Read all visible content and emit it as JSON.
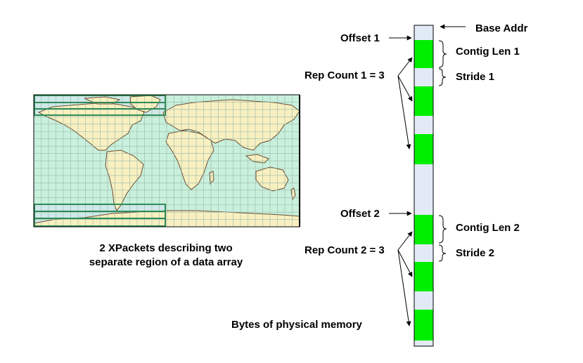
{
  "map": {
    "caption_line1": "2 XPackets describing two",
    "caption_line2": "separate region of a data array",
    "ocean_color": "#c8f0dc",
    "land_color": "#f8f0c0",
    "highlight_color": "#cfe8e8",
    "grid_color": "#9ab8a8",
    "region_color": "#2e8b57"
  },
  "memory": {
    "memory_label": "Bytes of physical memory",
    "base_addr_label": "Base Addr",
    "block_colors": {
      "data": "#00ee00",
      "gap": "#e2eaf6"
    },
    "packets": [
      {
        "offset_label": "Offset 1",
        "rep_label": "Rep Count 1 = 3",
        "contig_label": "Contig Len 1",
        "stride_label": "Stride 1",
        "rep_count": 3
      },
      {
        "offset_label": "Offset 2",
        "rep_label": "Rep Count 2 = 3",
        "contig_label": "Contig Len 2",
        "stride_label": "Stride 2",
        "rep_count": 3
      }
    ]
  }
}
